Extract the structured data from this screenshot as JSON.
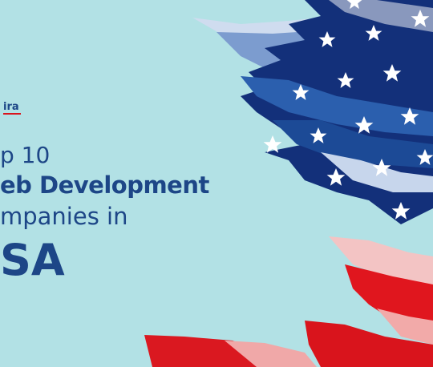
{
  "logo": {
    "name": "ira"
  },
  "heading": {
    "line1": "p 10",
    "line2": "eb Development",
    "line3": "mpanies in",
    "line4": "SA"
  }
}
